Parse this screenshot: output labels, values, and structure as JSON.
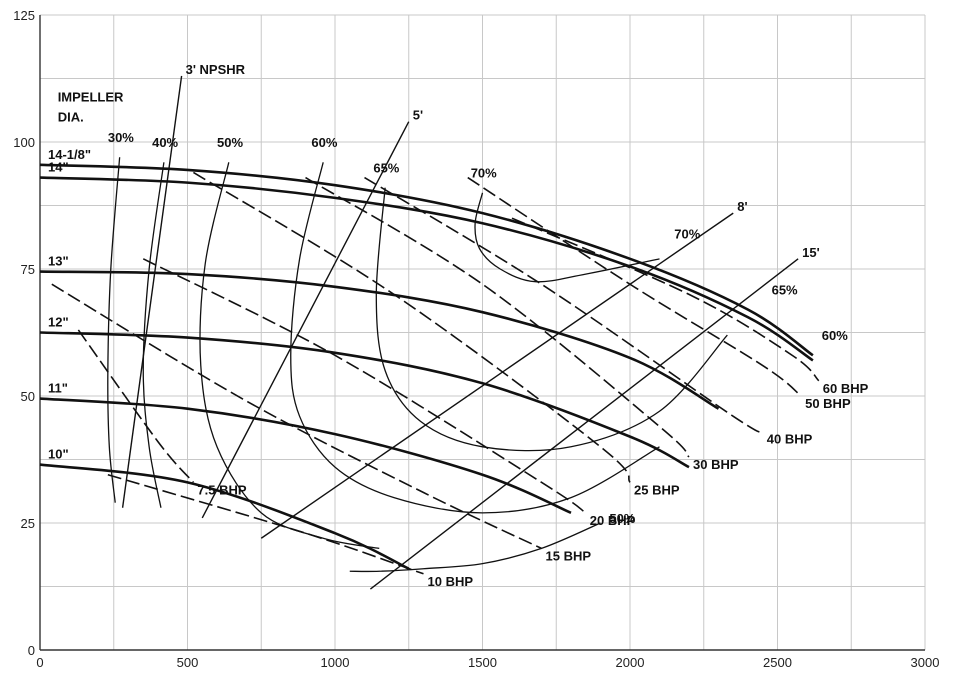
{
  "chart_data": {
    "type": "line",
    "title": "",
    "xlabel": "",
    "ylabel": "",
    "xlim": [
      0,
      3000
    ],
    "ylim": [
      0,
      125
    ],
    "x_ticks": [
      "0",
      "500",
      "1000",
      "1500",
      "2000",
      "2500",
      "3000"
    ],
    "y_ticks": [
      "0",
      "25",
      "50",
      "75",
      "100",
      "125"
    ],
    "grid": true,
    "impeller_label": "IMPELLER DIA.",
    "head_capacity_curves": [
      {
        "name": "14-1/8\"",
        "x": [
          0,
          500,
          1000,
          1500,
          2000,
          2400,
          2620
        ],
        "y": [
          95.5,
          94.5,
          91.5,
          86,
          77,
          67,
          58
        ]
      },
      {
        "name": "14\"",
        "x": [
          0,
          500,
          1000,
          1500,
          2000,
          2400,
          2620
        ],
        "y": [
          93,
          92,
          89,
          84,
          75.5,
          65.5,
          57
        ]
      },
      {
        "name": "13\"",
        "x": [
          0,
          500,
          1000,
          1500,
          2000,
          2300
        ],
        "y": [
          74.5,
          74,
          71.5,
          66.5,
          57.5,
          47.5
        ]
      },
      {
        "name": "12\"",
        "x": [
          0,
          500,
          1000,
          1500,
          2000,
          2200
        ],
        "y": [
          62.5,
          61.5,
          58.5,
          52.5,
          42,
          36
        ]
      },
      {
        "name": "11\"",
        "x": [
          0,
          500,
          1000,
          1500,
          1800
        ],
        "y": [
          49.5,
          47.5,
          42.5,
          34.5,
          27
        ]
      },
      {
        "name": "10\"",
        "x": [
          0,
          500,
          1000,
          1250
        ],
        "y": [
          36.5,
          33,
          23,
          16
        ]
      }
    ],
    "efficiency_curves": [
      {
        "name": "30%",
        "x": [
          270,
          240,
          230,
          235,
          255
        ],
        "y": [
          97,
          75,
          55,
          40,
          29
        ]
      },
      {
        "name": "40%",
        "x": [
          420,
          370,
          350,
          370,
          410
        ],
        "y": [
          96,
          75,
          55,
          40,
          28
        ]
      },
      {
        "name": "50%",
        "x": [
          640,
          560,
          545,
          600,
          750,
          960,
          1150
        ],
        "y": [
          96,
          76,
          56,
          40,
          27,
          22,
          20
        ]
      },
      {
        "name": "60%",
        "x": [
          960,
          880,
          850,
          880,
          1000,
          1200,
          1500,
          1800,
          2100
        ],
        "y": [
          96,
          77,
          58,
          46,
          36,
          30,
          27,
          30,
          40
        ]
      },
      {
        "name": "65%",
        "x": [
          1170,
          1140,
          1170,
          1290,
          1500,
          1800,
          2100,
          2330
        ],
        "y": [
          91,
          70,
          55,
          45,
          40,
          40,
          47,
          62
        ]
      },
      {
        "name": "70%",
        "x": [
          1500,
          1475,
          1490,
          1560,
          1680,
          1850,
          2100
        ],
        "y": [
          90,
          84,
          79,
          75,
          72.5,
          74,
          77
        ]
      },
      {
        "name": "50%",
        "x": [
          1050,
          1150,
          1300,
          1500,
          1700,
          1900
        ],
        "y": [
          15.5,
          15.5,
          16,
          17,
          20,
          25
        ]
      }
    ],
    "bhp_lines": [
      {
        "name": "7.5 BHP",
        "x": [
          130,
          400,
          520
        ],
        "y": [
          63,
          41,
          33
        ]
      },
      {
        "name": "10 BHP",
        "x": [
          230,
          900,
          1300
        ],
        "y": [
          34.5,
          23,
          15
        ]
      },
      {
        "name": "15 BHP",
        "x": [
          40,
          700,
          1300,
          1700
        ],
        "y": [
          72,
          49,
          31,
          20
        ]
      },
      {
        "name": "20 BHP",
        "x": [
          350,
          1000,
          1700,
          1850
        ],
        "y": [
          77,
          58,
          33,
          27
        ]
      },
      {
        "name": "25 BHP",
        "x": [
          520,
          1200,
          1900,
          2000
        ],
        "y": [
          94,
          70,
          40,
          33
        ]
      },
      {
        "name": "30 BHP",
        "x": [
          900,
          1500,
          2100,
          2200
        ],
        "y": [
          93,
          72,
          44,
          38
        ]
      },
      {
        "name": "40 BHP",
        "x": [
          1100,
          1700,
          2350,
          2450
        ],
        "y": [
          93,
          72,
          46,
          43
        ]
      },
      {
        "name": "50 BHP",
        "x": [
          1450,
          2000,
          2450,
          2580
        ],
        "y": [
          93,
          72,
          56,
          50
        ]
      },
      {
        "name": "60 BHP",
        "x": [
          1600,
          2200,
          2550,
          2640
        ],
        "y": [
          85,
          70,
          58,
          53
        ]
      }
    ],
    "npsh_lines": [
      {
        "name": "3' NPSHR",
        "x": [
          280,
          480
        ],
        "y": [
          28,
          113
        ]
      },
      {
        "name": "5'",
        "x": [
          550,
          1250
        ],
        "y": [
          26,
          104
        ]
      },
      {
        "name": "8'",
        "x": [
          750,
          2350
        ],
        "y": [
          22,
          86
        ]
      },
      {
        "name": "15'",
        "x": [
          1120,
          2570
        ],
        "y": [
          12,
          77
        ]
      }
    ],
    "efficiency_end_labels": [
      {
        "text": "70%",
        "x": 2150,
        "y": 81
      },
      {
        "text": "65%",
        "x": 2480,
        "y": 70
      },
      {
        "text": "60%",
        "x": 2650,
        "y": 61
      }
    ]
  }
}
